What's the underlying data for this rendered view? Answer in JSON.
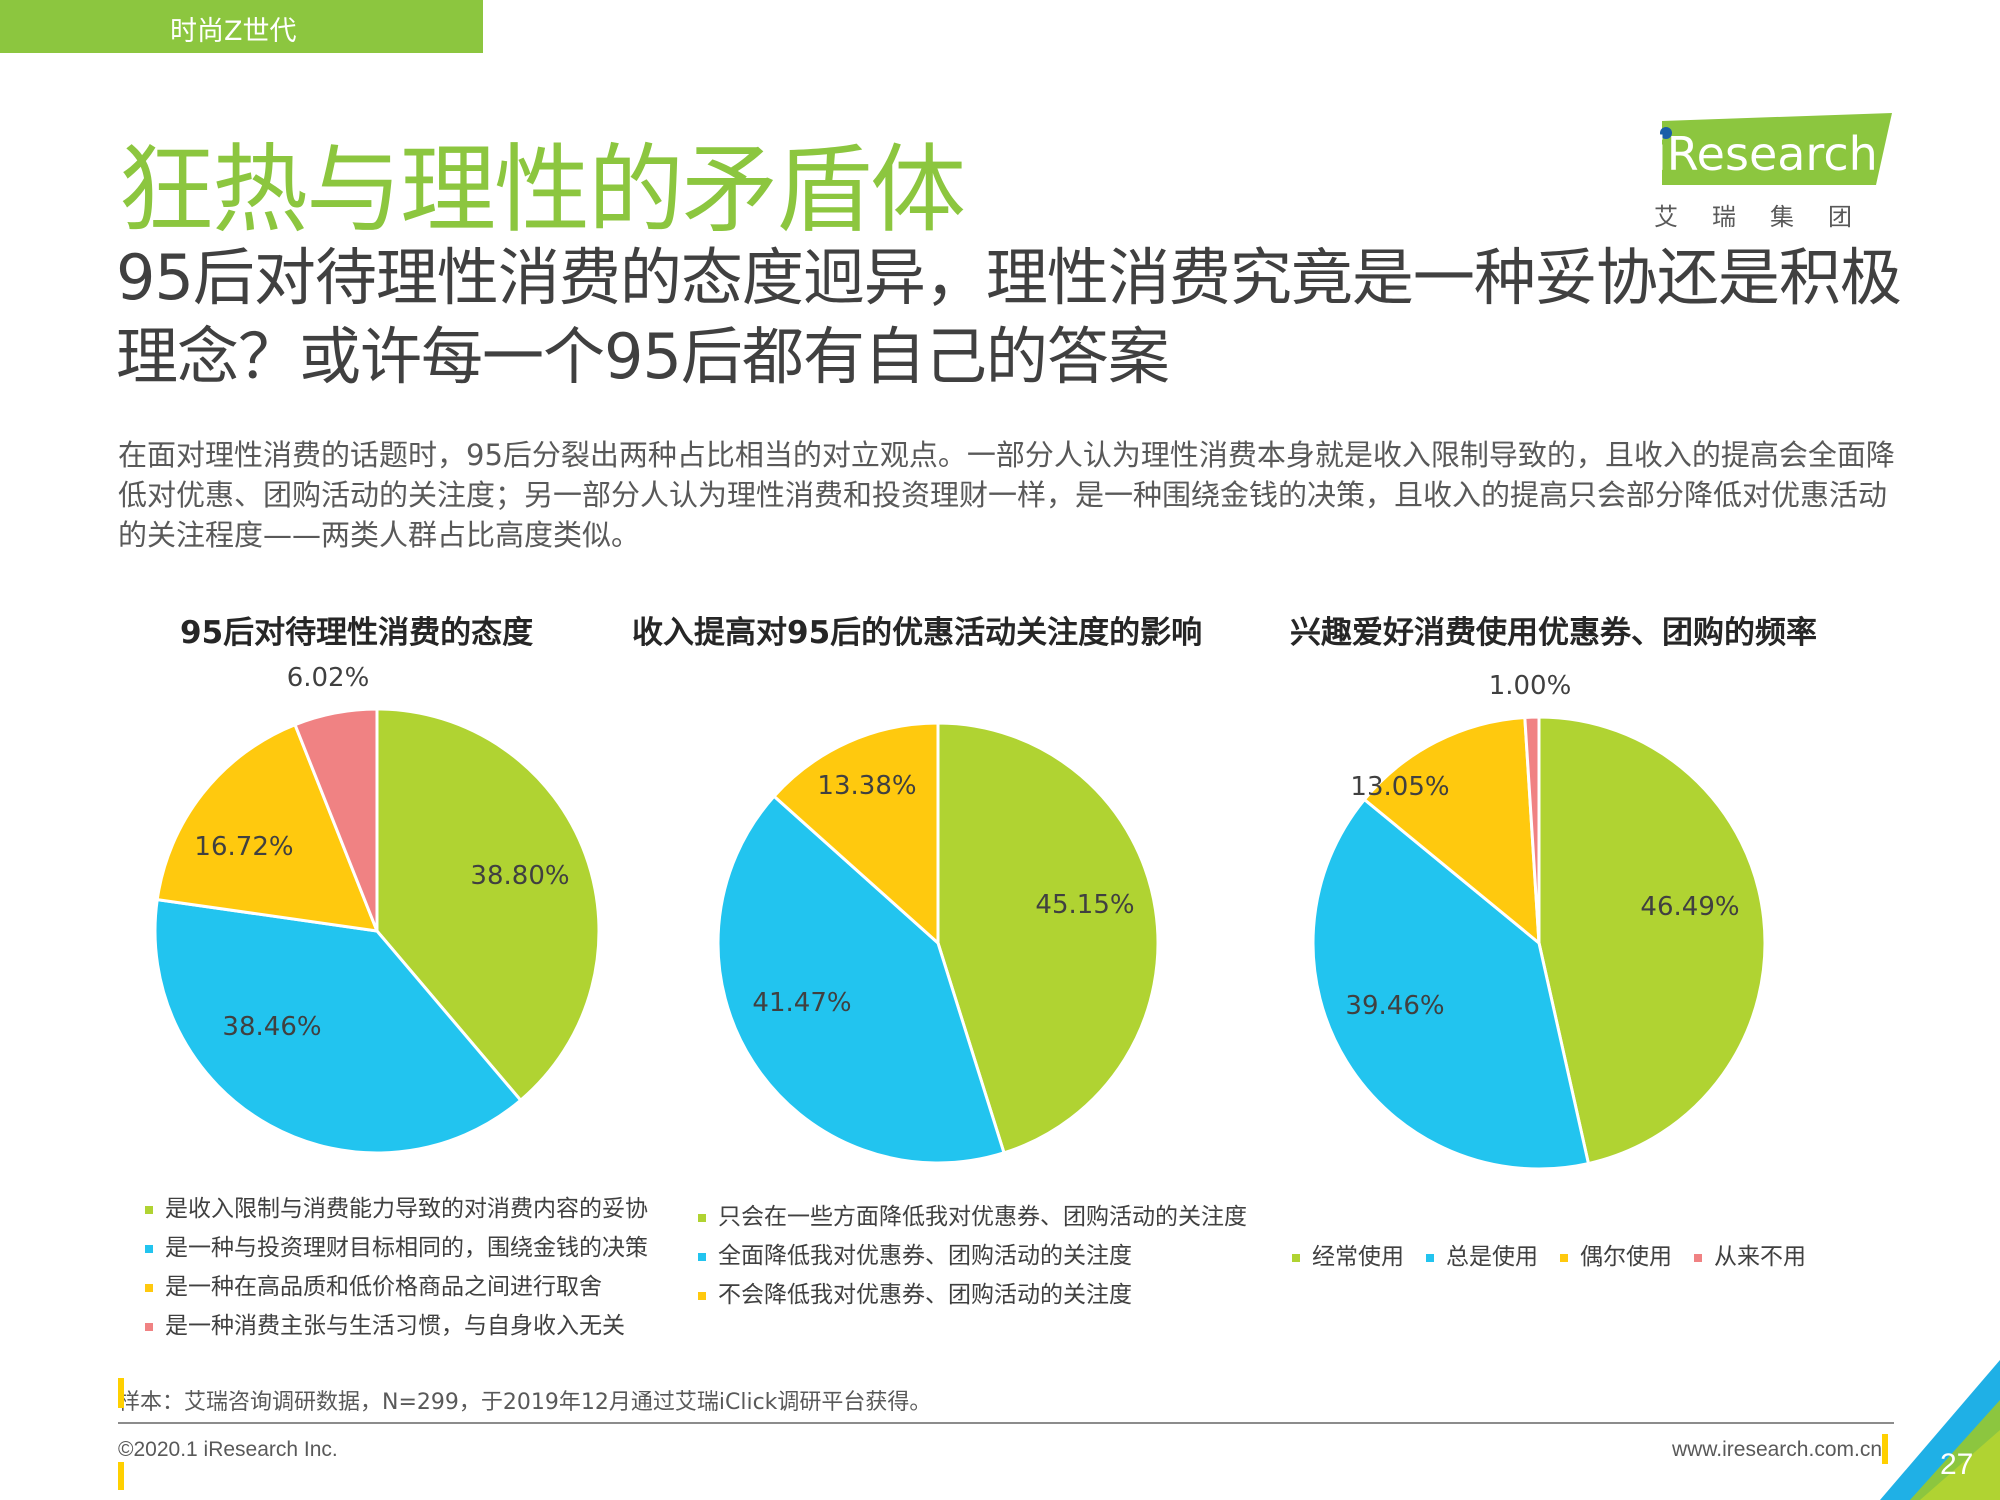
{
  "header": {
    "section_label": "时尚Z世代"
  },
  "page_title": "狂热与理性的矛盾体",
  "logo": {
    "brand": "iResearch",
    "brand_cn": "艾瑞集团"
  },
  "subtitle": "95后对待理性消费的态度迥异，理性消费究竟是一种妥协还是积极理念？或许每一个95后都有自己的答案",
  "intro": "在面对理性消费的话题时，95后分裂出两种占比相当的对立观点。一部分人认为理性消费本身就是收入限制导致的，且收入的提高会全面降低对优惠、团购活动的关注度；另一部分人认为理性消费和投资理财一样，是一种围绕金钱的决策，且收入的提高只会部分降低对优惠活动的关注程度——两类人群占比高度类似。",
  "colors": {
    "green": "#b0d332",
    "blue": "#22c4ef",
    "yellow": "#ffc90e",
    "pink": "#f08283",
    "accent": "#8cc63f"
  },
  "chart_data": [
    {
      "type": "pie",
      "title": "95后对待理性消费的态度",
      "categories": [
        "是收入限制与消费能力导致的对消费内容的妥协",
        "是一种与投资理财目标相同的，围绕金钱的决策",
        "是一种在高品质和低价格商品之间进行取舍",
        "是一种消费主张与生活习惯，与自身收入无关"
      ],
      "values": [
        38.8,
        38.46,
        16.72,
        6.02
      ],
      "labels": [
        "38.80%",
        "38.46%",
        "16.72%",
        "6.02%"
      ],
      "legend_position": "bottom"
    },
    {
      "type": "pie",
      "title": "收入提高对95后的优惠活动关注度的影响",
      "categories": [
        "只会在一些方面降低我对优惠券、团购活动的关注度",
        "全面降低我对优惠券、团购活动的关注度",
        "不会降低我对优惠券、团购活动的关注度"
      ],
      "values": [
        45.15,
        41.47,
        13.38
      ],
      "labels": [
        "45.15%",
        "41.47%",
        "13.38%"
      ],
      "legend_position": "bottom"
    },
    {
      "type": "pie",
      "title": "兴趣爱好消费使用优惠券、团购的频率",
      "categories": [
        "经常使用",
        "总是使用",
        "偶尔使用",
        "从来不用"
      ],
      "values": [
        46.49,
        39.46,
        13.05,
        1.0
      ],
      "labels": [
        "46.49%",
        "39.46%",
        "13.05%",
        "1.00%"
      ],
      "legend_position": "bottom"
    }
  ],
  "footer": {
    "source": "样本：艾瑞咨询调研数据，N=299，于2019年12月通过艾瑞iClick调研平台获得。",
    "copyright": "©2020.1 iResearch Inc.",
    "website": "www.iresearch.com.cn",
    "page_number": "27"
  }
}
